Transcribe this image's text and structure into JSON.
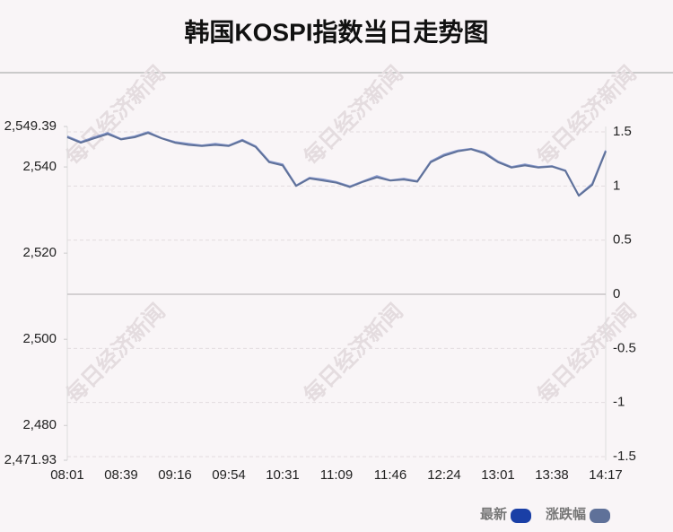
{
  "chart_data": {
    "type": "line",
    "title": "韩国KOSPI指数当日走势图",
    "watermark": "每日经济新闻",
    "categories": [
      "08:01",
      null,
      null,
      null,
      "08:39",
      null,
      null,
      null,
      "09:16",
      null,
      null,
      null,
      "09:54",
      null,
      null,
      null,
      "10:31",
      null,
      null,
      null,
      "11:09",
      null,
      null,
      null,
      "11:46",
      null,
      null,
      null,
      "12:24",
      null,
      null,
      null,
      "13:01",
      null,
      null,
      null,
      "13:38",
      null,
      null,
      null,
      "14:17"
    ],
    "series": [
      {
        "name": "最新",
        "color": "#1a3fa6",
        "values": [
          2547.1,
          2545.8,
          2546.9,
          2547.9,
          2546.5,
          2547.1,
          2548.1,
          2546.7,
          2545.8,
          2545.4,
          2545.0,
          2545.4,
          2545.0,
          2546.3,
          2544.8,
          2541.3,
          2540.6,
          2535.7,
          2537.5,
          2537.1,
          2536.5,
          2535.5,
          2536.7,
          2537.9,
          2536.9,
          2537.3,
          2536.7,
          2541.3,
          2542.9,
          2543.8,
          2544.2,
          2543.4,
          2541.3,
          2540.0,
          2540.6,
          2540.0,
          2540.2,
          2539.2,
          2533.4,
          2536.1,
          2543.8
        ]
      },
      {
        "name": "涨跌幅",
        "color": "#5f7199",
        "axis": "y2",
        "values": [
          1.45,
          1.4,
          1.44,
          1.48,
          1.43,
          1.45,
          1.49,
          1.44,
          1.4,
          1.38,
          1.37,
          1.38,
          1.37,
          1.42,
          1.36,
          1.22,
          1.19,
          1.0,
          1.07,
          1.05,
          1.03,
          0.99,
          1.04,
          1.08,
          1.05,
          1.06,
          1.04,
          1.22,
          1.28,
          1.32,
          1.34,
          1.3,
          1.22,
          1.17,
          1.19,
          1.17,
          1.18,
          1.14,
          0.91,
          1.01,
          1.32
        ]
      }
    ],
    "ylim": [
      2471.93,
      2549.39
    ],
    "yticks": [
      {
        "value": 2471.93,
        "label": "2,471.93"
      },
      {
        "value": 2480,
        "label": "2,480"
      },
      {
        "value": 2500,
        "label": "2,500"
      },
      {
        "value": 2520,
        "label": "2,520"
      },
      {
        "value": 2540,
        "label": "2,540"
      },
      {
        "value": 2549.39,
        "label": "2,549.39"
      }
    ],
    "y2lim": [
      -1.5,
      1.5
    ],
    "y2ticks": [
      -1.5,
      -1,
      -0.5,
      0,
      0.5,
      1,
      1.5
    ],
    "grid": true,
    "legend": "bottom-right"
  }
}
